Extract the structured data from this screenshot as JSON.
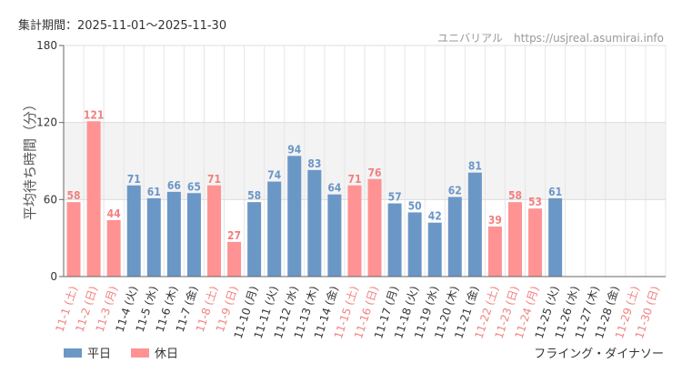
{
  "header": {
    "period": "集計期間：2025-11-01～2025-11-30",
    "source": "ユニバリアル　https://usjreal.asumirai.info"
  },
  "attraction": "フライング・ダイナソー",
  "colors": {
    "weekday": "#6b97c7",
    "holiday": "#ff9393",
    "holiday_text": "#f28080",
    "band": "#f3f3f3"
  },
  "legend": {
    "weekday": "平日",
    "holiday": "休日"
  },
  "chart_data": {
    "type": "bar",
    "ylabel": "平均待ち時間（分）",
    "ylim": [
      0,
      180
    ],
    "yticks": [
      0,
      60,
      120,
      180
    ],
    "highlight_band": [
      60,
      120
    ],
    "grid": true,
    "legend_position": "bottom-left",
    "categories": [
      "11-1 (土)",
      "11-2 (日)",
      "11-3 (月)",
      "11-4 (火)",
      "11-5 (水)",
      "11-6 (木)",
      "11-7 (金)",
      "11-8 (土)",
      "11-9 (日)",
      "11-10 (月)",
      "11-11 (火)",
      "11-12 (水)",
      "11-13 (木)",
      "11-14 (金)",
      "11-15 (土)",
      "11-16 (日)",
      "11-17 (月)",
      "11-18 (火)",
      "11-19 (水)",
      "11-20 (木)",
      "11-21 (金)",
      "11-22 (土)",
      "11-23 (日)",
      "11-24 (月)",
      "11-25 (火)",
      "11-26 (水)",
      "11-27 (木)",
      "11-28 (金)",
      "11-29 (土)",
      "11-30 (日)"
    ],
    "values": [
      58,
      121,
      44,
      71,
      61,
      66,
      65,
      71,
      27,
      58,
      74,
      94,
      83,
      64,
      71,
      76,
      57,
      50,
      42,
      62,
      81,
      39,
      58,
      53,
      61,
      null,
      null,
      null,
      null,
      null
    ],
    "day_type": [
      "holiday",
      "holiday",
      "holiday",
      "weekday",
      "weekday",
      "weekday",
      "weekday",
      "holiday",
      "holiday",
      "weekday",
      "weekday",
      "weekday",
      "weekday",
      "weekday",
      "holiday",
      "holiday",
      "weekday",
      "weekday",
      "weekday",
      "weekday",
      "weekday",
      "holiday",
      "holiday",
      "holiday",
      "weekday",
      "weekday",
      "weekday",
      "weekday",
      "holiday",
      "holiday"
    ]
  }
}
